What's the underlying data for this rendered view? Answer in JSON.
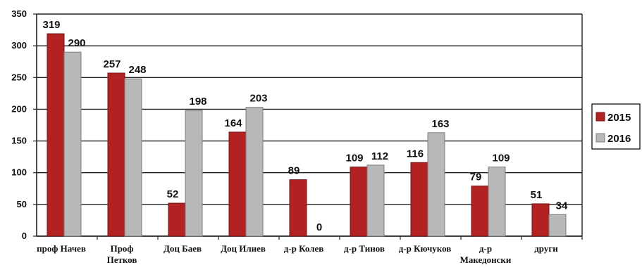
{
  "chart_data": {
    "type": "bar",
    "categories": [
      [
        "проф Начев"
      ],
      [
        "Проф",
        "Петков"
      ],
      [
        "Доц Баев"
      ],
      [
        "Доц Илиев"
      ],
      [
        "д-р Колев"
      ],
      [
        "д-р Тинов"
      ],
      [
        "д-р Кючуков"
      ],
      [
        "д-р",
        "Македонски"
      ],
      [
        "други"
      ]
    ],
    "series": [
      {
        "name": "2015",
        "color": "#b22222",
        "values": [
          319,
          257,
          52,
          164,
          89,
          109,
          116,
          79,
          51
        ]
      },
      {
        "name": "2016",
        "color": "#b8b8b8",
        "values": [
          290,
          248,
          198,
          203,
          0,
          112,
          163,
          109,
          34
        ]
      }
    ],
    "ylim": [
      0,
      350
    ],
    "yticks": [
      0,
      50,
      100,
      150,
      200,
      250,
      300,
      350
    ],
    "grid": true,
    "legend": "right"
  }
}
